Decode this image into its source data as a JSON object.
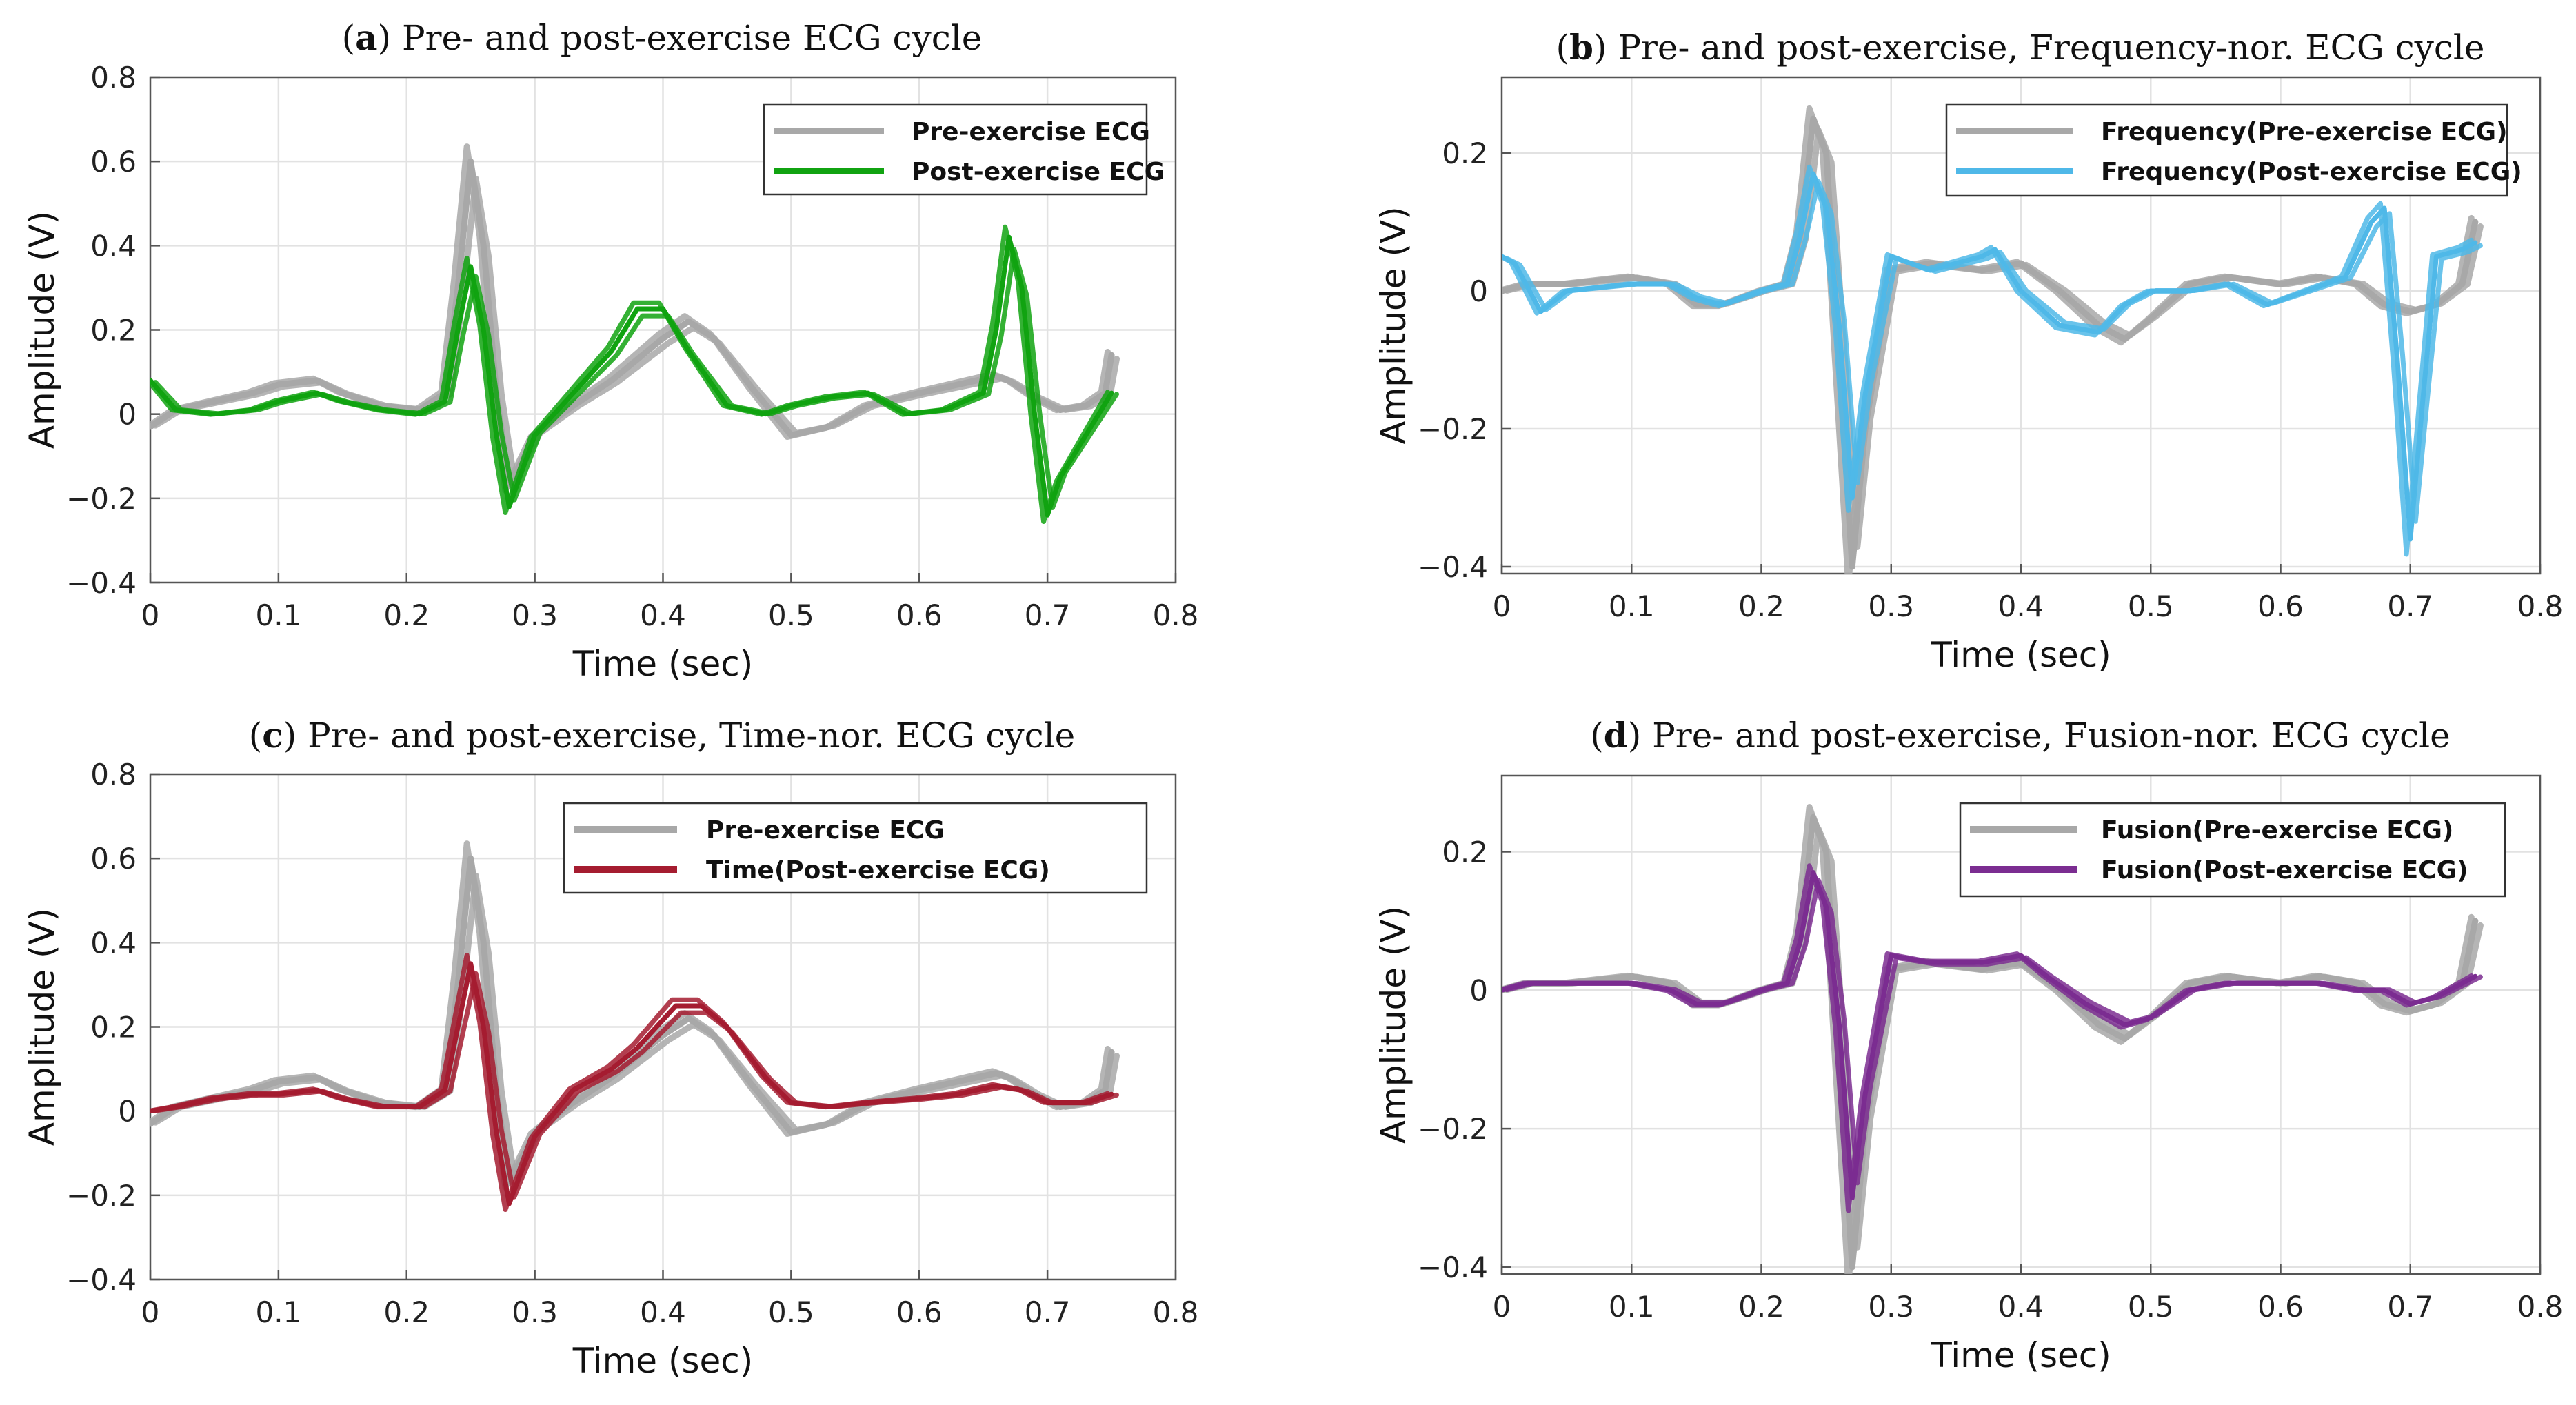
{
  "chart_data": [
    {
      "type": "line",
      "label": "a",
      "title": "Pre- and post-exercise ECG cycle",
      "xlabel": "Time (sec)",
      "ylabel": "Amplitude (V)",
      "xlim": [
        0,
        0.8
      ],
      "ylim": [
        -0.4,
        0.8
      ],
      "xticks": [
        0,
        0.1,
        0.2,
        0.3,
        0.4,
        0.5,
        0.6,
        0.7,
        0.8
      ],
      "xtick_labels": [
        "0",
        "0.1",
        "0.2",
        "0.3",
        "0.4",
        "0.5",
        "0.6",
        "0.7",
        "0.8"
      ],
      "yticks": [
        -0.4,
        -0.2,
        0,
        0.2,
        0.4,
        0.6,
        0.8
      ],
      "ytick_labels": [
        "−0.4",
        "−0.2",
        "0",
        "0.2",
        "0.4",
        "0.6",
        "0.8"
      ],
      "grid": true,
      "legend_position": "top-right",
      "series": [
        {
          "name": "Pre-exercise ECG",
          "color": "#a8a8a8",
          "x": [
            0,
            0.02,
            0.05,
            0.08,
            0.1,
            0.13,
            0.15,
            0.18,
            0.21,
            0.23,
            0.24,
            0.25,
            0.26,
            0.27,
            0.28,
            0.3,
            0.33,
            0.36,
            0.4,
            0.42,
            0.44,
            0.47,
            0.5,
            0.53,
            0.56,
            0.6,
            0.63,
            0.66,
            0.67,
            0.69,
            0.71,
            0.73,
            0.745,
            0.75
          ],
          "y": [
            -0.03,
            0.01,
            0.03,
            0.05,
            0.07,
            0.08,
            0.05,
            0.02,
            0.01,
            0.05,
            0.3,
            0.6,
            0.4,
            0.05,
            -0.17,
            -0.05,
            0.02,
            0.08,
            0.18,
            0.22,
            0.18,
            0.06,
            -0.05,
            -0.03,
            0.02,
            0.05,
            0.07,
            0.09,
            0.08,
            0.04,
            0.01,
            0.02,
            0.05,
            0.14
          ]
        },
        {
          "name": "Post-exercise ECG",
          "color": "#11a311",
          "x": [
            0,
            0.02,
            0.05,
            0.08,
            0.1,
            0.13,
            0.15,
            0.18,
            0.21,
            0.23,
            0.24,
            0.25,
            0.26,
            0.27,
            0.28,
            0.3,
            0.33,
            0.36,
            0.38,
            0.4,
            0.42,
            0.45,
            0.48,
            0.5,
            0.53,
            0.56,
            0.59,
            0.62,
            0.65,
            0.66,
            0.67,
            0.68,
            0.69,
            0.7,
            0.71,
            0.73,
            0.75
          ],
          "y": [
            0.08,
            0.01,
            0.0,
            0.01,
            0.03,
            0.05,
            0.03,
            0.01,
            0.0,
            0.03,
            0.2,
            0.35,
            0.2,
            -0.05,
            -0.22,
            -0.05,
            0.05,
            0.15,
            0.25,
            0.25,
            0.15,
            0.02,
            0.0,
            0.02,
            0.04,
            0.05,
            0.0,
            0.01,
            0.05,
            0.2,
            0.42,
            0.3,
            0.0,
            -0.24,
            -0.15,
            -0.05,
            0.05
          ]
        }
      ]
    },
    {
      "type": "line",
      "label": "b",
      "title": "Pre- and post-exercise, Frequency-nor. ECG cycle",
      "xlabel": "Time (sec)",
      "ylabel": "Amplitude (V)",
      "xlim": [
        0,
        0.8
      ],
      "ylim": [
        -0.41,
        0.31
      ],
      "xticks": [
        0,
        0.1,
        0.2,
        0.3,
        0.4,
        0.5,
        0.6,
        0.7,
        0.8
      ],
      "xtick_labels": [
        "0",
        "0.1",
        "0.2",
        "0.3",
        "0.4",
        "0.5",
        "0.6",
        "0.7",
        "0.8"
      ],
      "yticks": [
        -0.4,
        -0.2,
        0,
        0.2
      ],
      "ytick_labels": [
        "−0.4",
        "−0.2",
        "0",
        "0.2"
      ],
      "grid": true,
      "legend_position": "top-right",
      "series": [
        {
          "name": "Frequency(Pre-exercise ECG)",
          "color": "#a8a8a8",
          "x": [
            0,
            0.02,
            0.05,
            0.1,
            0.13,
            0.15,
            0.17,
            0.2,
            0.22,
            0.23,
            0.24,
            0.25,
            0.26,
            0.27,
            0.28,
            0.3,
            0.33,
            0.37,
            0.4,
            0.43,
            0.46,
            0.48,
            0.5,
            0.53,
            0.56,
            0.6,
            0.63,
            0.66,
            0.68,
            0.7,
            0.72,
            0.74,
            0.75
          ],
          "y": [
            0.0,
            0.01,
            0.01,
            0.02,
            0.01,
            -0.02,
            -0.02,
            0.0,
            0.01,
            0.08,
            0.25,
            0.2,
            -0.1,
            -0.4,
            -0.2,
            0.03,
            0.04,
            0.03,
            0.04,
            0.0,
            -0.05,
            -0.07,
            -0.04,
            0.01,
            0.02,
            0.01,
            0.02,
            0.01,
            -0.02,
            -0.03,
            -0.02,
            0.01,
            0.1
          ]
        },
        {
          "name": "Frequency(Post-exercise ECG)",
          "color": "#4fb8e8",
          "x": [
            0,
            0.01,
            0.03,
            0.05,
            0.1,
            0.13,
            0.15,
            0.17,
            0.2,
            0.22,
            0.23,
            0.24,
            0.25,
            0.26,
            0.27,
            0.28,
            0.3,
            0.33,
            0.37,
            0.38,
            0.4,
            0.43,
            0.46,
            0.48,
            0.5,
            0.53,
            0.56,
            0.59,
            0.62,
            0.65,
            0.67,
            0.68,
            0.69,
            0.7,
            0.71,
            0.72,
            0.74,
            0.75
          ],
          "y": [
            0.05,
            0.04,
            -0.03,
            0.0,
            0.01,
            0.01,
            -0.01,
            -0.02,
            0.0,
            0.01,
            0.08,
            0.17,
            0.12,
            -0.05,
            -0.3,
            -0.15,
            0.05,
            0.03,
            0.05,
            0.06,
            0.0,
            -0.05,
            -0.06,
            -0.02,
            0.0,
            0.0,
            0.01,
            -0.02,
            0.0,
            0.02,
            0.1,
            0.12,
            -0.1,
            -0.36,
            -0.15,
            0.05,
            0.06,
            0.07
          ]
        }
      ]
    },
    {
      "type": "line",
      "label": "c",
      "title": "Pre- and post-exercise, Time-nor. ECG cycle",
      "xlabel": "Time (sec)",
      "ylabel": "Amplitude (V)",
      "xlim": [
        0,
        0.8
      ],
      "ylim": [
        -0.4,
        0.8
      ],
      "xticks": [
        0,
        0.1,
        0.2,
        0.3,
        0.4,
        0.5,
        0.6,
        0.7,
        0.8
      ],
      "xtick_labels": [
        "0",
        "0.1",
        "0.2",
        "0.3",
        "0.4",
        "0.5",
        "0.6",
        "0.7",
        "0.8"
      ],
      "yticks": [
        -0.4,
        -0.2,
        0,
        0.2,
        0.4,
        0.6,
        0.8
      ],
      "ytick_labels": [
        "−0.4",
        "−0.2",
        "0",
        "0.2",
        "0.4",
        "0.6",
        "0.8"
      ],
      "grid": true,
      "legend_position": "top-right",
      "series": [
        {
          "name": "Pre-exercise ECG",
          "color": "#a8a8a8",
          "x": [
            0,
            0.02,
            0.05,
            0.08,
            0.1,
            0.13,
            0.15,
            0.18,
            0.21,
            0.23,
            0.24,
            0.25,
            0.26,
            0.27,
            0.28,
            0.3,
            0.33,
            0.36,
            0.4,
            0.42,
            0.44,
            0.47,
            0.5,
            0.53,
            0.56,
            0.6,
            0.63,
            0.66,
            0.67,
            0.69,
            0.71,
            0.73,
            0.745,
            0.75
          ],
          "y": [
            -0.03,
            0.01,
            0.03,
            0.05,
            0.07,
            0.08,
            0.05,
            0.02,
            0.01,
            0.05,
            0.3,
            0.6,
            0.4,
            0.05,
            -0.17,
            -0.05,
            0.02,
            0.08,
            0.18,
            0.22,
            0.18,
            0.06,
            -0.05,
            -0.03,
            0.02,
            0.05,
            0.07,
            0.09,
            0.08,
            0.04,
            0.01,
            0.02,
            0.05,
            0.14
          ]
        },
        {
          "name": "Time(Post-exercise ECG)",
          "color": "#a51c30",
          "x": [
            0,
            0.02,
            0.05,
            0.08,
            0.1,
            0.13,
            0.15,
            0.18,
            0.21,
            0.23,
            0.24,
            0.25,
            0.26,
            0.27,
            0.28,
            0.3,
            0.33,
            0.36,
            0.38,
            0.41,
            0.43,
            0.45,
            0.48,
            0.5,
            0.53,
            0.56,
            0.6,
            0.63,
            0.66,
            0.68,
            0.7,
            0.73,
            0.75
          ],
          "y": [
            0.0,
            0.01,
            0.03,
            0.04,
            0.04,
            0.05,
            0.03,
            0.01,
            0.01,
            0.05,
            0.2,
            0.35,
            0.2,
            -0.05,
            -0.22,
            -0.06,
            0.05,
            0.1,
            0.15,
            0.25,
            0.25,
            0.2,
            0.08,
            0.02,
            0.01,
            0.02,
            0.03,
            0.04,
            0.06,
            0.05,
            0.02,
            0.02,
            0.04
          ]
        }
      ]
    },
    {
      "type": "line",
      "label": "d",
      "title": "Pre- and post-exercise, Fusion-nor. ECG cycle",
      "xlabel": "Time (sec)",
      "ylabel": "Amplitude (V)",
      "xlim": [
        0,
        0.8
      ],
      "ylim": [
        -0.41,
        0.31
      ],
      "xticks": [
        0,
        0.1,
        0.2,
        0.3,
        0.4,
        0.5,
        0.6,
        0.7,
        0.8
      ],
      "xtick_labels": [
        "0",
        "0.1",
        "0.2",
        "0.3",
        "0.4",
        "0.5",
        "0.6",
        "0.7",
        "0.8"
      ],
      "yticks": [
        -0.4,
        -0.2,
        0,
        0.2
      ],
      "ytick_labels": [
        "−0.4",
        "−0.2",
        "0",
        "0.2"
      ],
      "grid": true,
      "legend_position": "top-right",
      "series": [
        {
          "name": "Fusion(Pre-exercise ECG)",
          "color": "#a8a8a8",
          "x": [
            0,
            0.02,
            0.05,
            0.1,
            0.13,
            0.15,
            0.17,
            0.2,
            0.22,
            0.23,
            0.24,
            0.25,
            0.26,
            0.27,
            0.28,
            0.3,
            0.33,
            0.37,
            0.4,
            0.43,
            0.46,
            0.48,
            0.5,
            0.53,
            0.56,
            0.6,
            0.63,
            0.66,
            0.68,
            0.7,
            0.72,
            0.74,
            0.75
          ],
          "y": [
            0.0,
            0.01,
            0.01,
            0.02,
            0.01,
            -0.02,
            -0.02,
            0.0,
            0.01,
            0.08,
            0.25,
            0.2,
            -0.1,
            -0.4,
            -0.2,
            0.03,
            0.04,
            0.03,
            0.04,
            0.0,
            -0.05,
            -0.07,
            -0.04,
            0.01,
            0.02,
            0.01,
            0.02,
            0.01,
            -0.02,
            -0.03,
            -0.02,
            0.01,
            0.1
          ]
        },
        {
          "name": "Fusion(Post-exercise ECG)",
          "color": "#7b2d91",
          "x": [
            0,
            0.02,
            0.05,
            0.1,
            0.13,
            0.15,
            0.17,
            0.2,
            0.22,
            0.23,
            0.24,
            0.25,
            0.26,
            0.27,
            0.28,
            0.3,
            0.33,
            0.37,
            0.4,
            0.42,
            0.45,
            0.48,
            0.5,
            0.53,
            0.56,
            0.6,
            0.63,
            0.66,
            0.68,
            0.7,
            0.72,
            0.74,
            0.75
          ],
          "y": [
            0.0,
            0.01,
            0.01,
            0.01,
            0.0,
            -0.02,
            -0.02,
            0.0,
            0.01,
            0.07,
            0.17,
            0.12,
            -0.05,
            -0.3,
            -0.15,
            0.05,
            0.04,
            0.04,
            0.05,
            0.02,
            -0.02,
            -0.05,
            -0.04,
            0.0,
            0.01,
            0.01,
            0.01,
            0.0,
            0.0,
            -0.02,
            -0.01,
            0.01,
            0.02
          ]
        }
      ]
    }
  ]
}
